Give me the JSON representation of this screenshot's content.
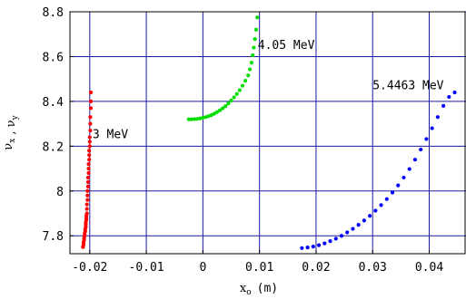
{
  "chart_data": {
    "type": "scatter",
    "xlabel_main": "x",
    "xlabel_sub": "o",
    "xlabel_unit": "(m)",
    "ylabel_parts": [
      {
        "main": "ν",
        "sub": "x"
      },
      {
        "main": " , ",
        "sub": ""
      },
      {
        "main": "ν",
        "sub": "y"
      }
    ],
    "xlim": [
      -0.0235,
      0.0465
    ],
    "ylim": [
      7.72,
      8.8
    ],
    "xticks": [
      -0.02,
      -0.01,
      0,
      0.01,
      0.02,
      0.03,
      0.04
    ],
    "xtick_labels": [
      "-0.02",
      "-0.01",
      "0",
      "0.01",
      "0.02",
      "0.03",
      "0.04"
    ],
    "yticks": [
      7.8,
      8.0,
      8.2,
      8.4,
      8.6,
      8.8
    ],
    "ytick_labels": [
      "7.8",
      "8",
      "8.2",
      "8.4",
      "8.6",
      "8.8"
    ],
    "grid": true,
    "grid_color": "#1a1aa0",
    "series": [
      {
        "color": "#ff0000",
        "label": "3 MeV",
        "points": [
          [
            -0.0212,
            7.75
          ],
          [
            -0.0211,
            7.76
          ],
          [
            -0.0211,
            7.77
          ],
          [
            -0.021,
            7.78
          ],
          [
            -0.021,
            7.79
          ],
          [
            -0.0209,
            7.8
          ],
          [
            -0.0209,
            7.81
          ],
          [
            -0.0208,
            7.82
          ],
          [
            -0.0208,
            7.83
          ],
          [
            -0.0207,
            7.84
          ],
          [
            -0.0207,
            7.85
          ],
          [
            -0.0207,
            7.86
          ],
          [
            -0.0206,
            7.87
          ],
          [
            -0.0206,
            7.88
          ],
          [
            -0.0206,
            7.89
          ],
          [
            -0.0205,
            7.9
          ],
          [
            -0.0205,
            7.92
          ],
          [
            -0.0205,
            7.94
          ],
          [
            -0.0204,
            7.96
          ],
          [
            -0.0204,
            7.98
          ],
          [
            -0.0204,
            8.0
          ],
          [
            -0.0203,
            8.02
          ],
          [
            -0.0203,
            8.04
          ],
          [
            -0.0203,
            8.06
          ],
          [
            -0.0202,
            8.08
          ],
          [
            -0.0202,
            8.1
          ],
          [
            -0.0202,
            8.12
          ],
          [
            -0.0201,
            8.14
          ],
          [
            -0.0201,
            8.16
          ],
          [
            -0.0201,
            8.18
          ],
          [
            -0.02,
            8.2
          ],
          [
            -0.02,
            8.22
          ],
          [
            -0.02,
            8.24
          ],
          [
            -0.0199,
            8.27
          ],
          [
            -0.0199,
            8.3
          ],
          [
            -0.0199,
            8.33
          ],
          [
            -0.0198,
            8.37
          ],
          [
            -0.0198,
            8.4
          ],
          [
            -0.0198,
            8.44
          ]
        ]
      },
      {
        "color": "#00dd00",
        "label": "4.05 MeV",
        "points": [
          [
            -0.0025,
            8.32
          ],
          [
            -0.002,
            8.32
          ],
          [
            -0.0015,
            8.321
          ],
          [
            -0.001,
            8.322
          ],
          [
            -0.0005,
            8.324
          ],
          [
            0.0,
            8.327
          ],
          [
            0.0005,
            8.33
          ],
          [
            0.001,
            8.334
          ],
          [
            0.0015,
            8.339
          ],
          [
            0.002,
            8.345
          ],
          [
            0.0025,
            8.352
          ],
          [
            0.003,
            8.36
          ],
          [
            0.0035,
            8.369
          ],
          [
            0.004,
            8.379
          ],
          [
            0.0045,
            8.391
          ],
          [
            0.005,
            8.404
          ],
          [
            0.0055,
            8.418
          ],
          [
            0.006,
            8.433
          ],
          [
            0.0065,
            8.45
          ],
          [
            0.007,
            8.47
          ],
          [
            0.0075,
            8.492
          ],
          [
            0.008,
            8.516
          ],
          [
            0.0083,
            8.543
          ],
          [
            0.0086,
            8.573
          ],
          [
            0.0088,
            8.606
          ],
          [
            0.009,
            8.64
          ],
          [
            0.0092,
            8.678
          ],
          [
            0.0094,
            8.72
          ],
          [
            0.0096,
            8.775
          ]
        ]
      },
      {
        "color": "#0000ff",
        "label": "5.4463 MeV",
        "points": [
          [
            0.0175,
            7.745
          ],
          [
            0.0185,
            7.748
          ],
          [
            0.0195,
            7.752
          ],
          [
            0.0205,
            7.758
          ],
          [
            0.0215,
            7.766
          ],
          [
            0.0225,
            7.776
          ],
          [
            0.0235,
            7.787
          ],
          [
            0.0245,
            7.8
          ],
          [
            0.0255,
            7.815
          ],
          [
            0.0265,
            7.831
          ],
          [
            0.0275,
            7.849
          ],
          [
            0.0285,
            7.868
          ],
          [
            0.0295,
            7.889
          ],
          [
            0.0305,
            7.912
          ],
          [
            0.0315,
            7.937
          ],
          [
            0.0325,
            7.964
          ],
          [
            0.0335,
            7.993
          ],
          [
            0.0345,
            8.025
          ],
          [
            0.0355,
            8.06
          ],
          [
            0.0365,
            8.098
          ],
          [
            0.0375,
            8.14
          ],
          [
            0.0385,
            8.185
          ],
          [
            0.0395,
            8.232
          ],
          [
            0.0405,
            8.28
          ],
          [
            0.0415,
            8.33
          ],
          [
            0.0425,
            8.38
          ],
          [
            0.0435,
            8.42
          ],
          [
            0.0445,
            8.44
          ]
        ]
      }
    ],
    "annotations": [
      {
        "text": "3 MeV",
        "x": -0.0195,
        "y": 8.235
      },
      {
        "text": "4.05 MeV",
        "x": 0.0097,
        "y": 8.635
      },
      {
        "text": "5.4463 MeV",
        "x": 0.03,
        "y": 8.455
      }
    ]
  }
}
